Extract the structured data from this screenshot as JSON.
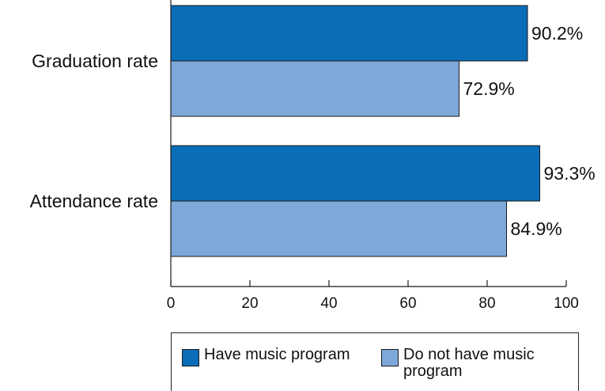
{
  "chart_data": {
    "type": "bar",
    "orientation": "horizontal",
    "categories": [
      "Graduation rate",
      "Attendance rate"
    ],
    "series": [
      {
        "name": "Have music program",
        "values": [
          90.2,
          93.3
        ],
        "color": "#0a6db7"
      },
      {
        "name": "Do not have music program",
        "values": [
          72.9,
          84.9
        ],
        "color": "#7ea8d9"
      }
    ],
    "data_labels": [
      [
        "90.2%",
        "93.3%"
      ],
      [
        "72.9%",
        "84.9%"
      ]
    ],
    "xlim": [
      0,
      100
    ],
    "xticks": [
      "0",
      "20",
      "40",
      "60",
      "80",
      "100"
    ],
    "title": "",
    "xlabel": "",
    "ylabel": "",
    "grid": false,
    "legend_position": "bottom"
  },
  "legend": {
    "items": [
      {
        "label": "Have music program",
        "color": "#0a6db7"
      },
      {
        "label": "Do not have music program",
        "color": "#7ea8d9"
      }
    ]
  }
}
